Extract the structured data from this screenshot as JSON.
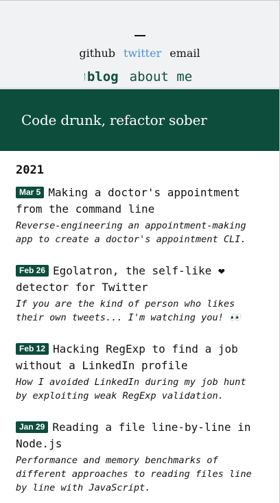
{
  "header": {
    "social": [
      {
        "label": "github"
      },
      {
        "label": "twitter"
      },
      {
        "label": "email"
      }
    ],
    "nav": [
      {
        "label": "blog"
      },
      {
        "label": "about me"
      }
    ]
  },
  "banner": {
    "title": "Code drunk, refactor sober"
  },
  "posts": {
    "year": "2021",
    "items": [
      {
        "date": "Mar 5",
        "title": "Making a doctor's appointment from the command line",
        "description": "Reverse-engineering an appointment-making app to create a doctor's appointment CLI."
      },
      {
        "date": "Feb 26",
        "title": "Egolatron, the self-like ❤ detector for Twitter",
        "description": "If you are the kind of person who likes their own tweets... I'm watching you! 👀"
      },
      {
        "date": "Feb 12",
        "title": "Hacking RegExp to find a job without a LinkedIn profile",
        "description": "How I avoided LinkedIn during my job hunt by exploiting weak RegExp validation."
      },
      {
        "date": "Jan 29",
        "title": "Reading a file line-by-line in Node.js",
        "description": "Performance and memory benchmarks of different approaches to reading files line by line with JavaScript."
      }
    ]
  }
}
